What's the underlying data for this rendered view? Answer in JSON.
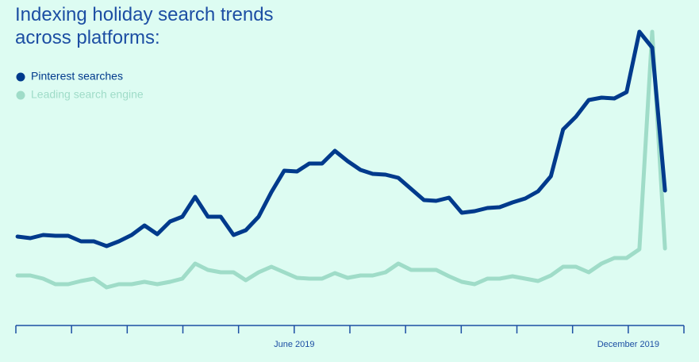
{
  "chart_data": {
    "type": "line",
    "title": "Indexing holiday search trends across platforms:",
    "x": [
      0.03,
      0.26,
      0.49,
      0.71,
      0.94,
      1.17,
      1.4,
      1.63,
      1.85,
      2.08,
      2.31,
      2.54,
      2.77,
      2.99,
      3.22,
      3.45,
      3.68,
      3.91,
      4.13,
      4.36,
      4.59,
      4.82,
      5.05,
      5.27,
      5.5,
      5.73,
      5.96,
      6.19,
      6.41,
      6.64,
      6.87,
      7.1,
      7.33,
      7.55,
      7.78,
      8.01,
      8.24,
      8.47,
      8.69,
      8.92,
      9.15,
      9.38,
      9.61,
      9.83,
      10.06,
      10.29,
      10.52,
      10.75,
      10.97,
      11.2,
      11.43,
      11.66
    ],
    "xlim": [
      0,
      12
    ],
    "xticks": [
      0,
      1,
      2,
      3,
      4,
      5,
      6,
      7,
      8,
      9,
      10,
      11,
      12
    ],
    "xtick_labels": [
      {
        "value": 5,
        "label": "June 2019"
      },
      {
        "value": 11,
        "label": "December 2019"
      }
    ],
    "ylim": [
      0,
      400
    ],
    "series": [
      {
        "name": "Pinterest searches",
        "color": "#003a8c",
        "values": [
          112,
          110,
          114,
          113,
          113,
          106,
          106,
          100,
          106,
          114,
          126,
          115,
          131,
          137,
          162,
          137,
          137,
          114,
          120,
          137,
          168,
          195,
          194,
          204,
          204,
          220,
          207,
          196,
          191,
          190,
          186,
          172,
          158,
          157,
          161,
          142,
          144,
          148,
          149,
          155,
          160,
          169,
          188,
          247,
          263,
          284,
          287,
          286,
          294,
          370,
          350,
          170
        ]
      },
      {
        "name": "Leading search engine",
        "color": "#9fdcc8",
        "values": [
          63,
          63,
          59,
          52,
          52,
          56,
          59,
          48,
          52,
          52,
          55,
          52,
          55,
          59,
          78,
          70,
          67,
          67,
          57,
          67,
          74,
          67,
          60,
          59,
          59,
          66,
          60,
          63,
          63,
          67,
          78,
          70,
          70,
          70,
          62,
          55,
          52,
          59,
          59,
          62,
          59,
          56,
          63,
          74,
          74,
          67,
          78,
          85,
          85,
          96,
          370,
          97
        ]
      }
    ],
    "legend": "top-left"
  }
}
